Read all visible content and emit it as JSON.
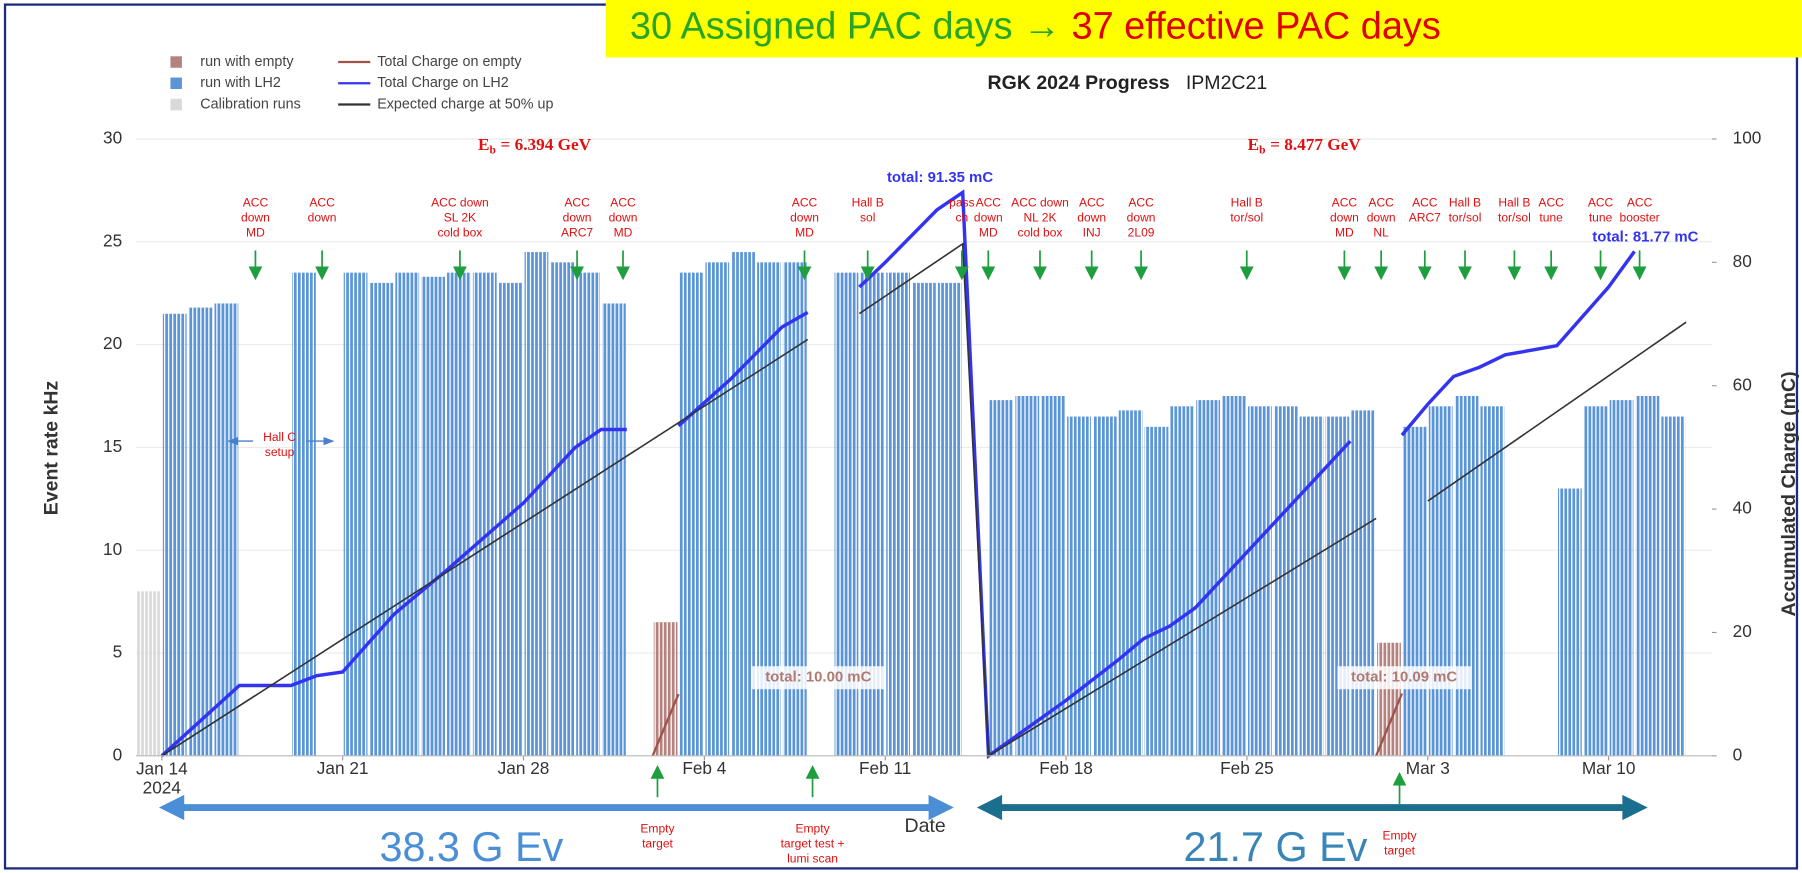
{
  "banner": [
    "30 Assigned PAC days",
    "→",
    "37 effective PAC days"
  ],
  "chart_data": {
    "type": "bar",
    "title": "RGK 2024 Progress",
    "subtitle": "IPM2C21",
    "xlabel": "Date",
    "ylabel": "Event rate kHz",
    "y2label": "Accumulated Charge (mC)",
    "xlim": [
      "2024-01-13",
      "2024-03-14"
    ],
    "xticks": [
      {
        "value": "2024-01-14",
        "label": "Jan 14\n2024"
      },
      {
        "value": "2024-01-21",
        "label": "Jan 21"
      },
      {
        "value": "2024-01-28",
        "label": "Jan 28"
      },
      {
        "value": "2024-02-04",
        "label": "Feb 4"
      },
      {
        "value": "2024-02-11",
        "label": "Feb 11"
      },
      {
        "value": "2024-02-18",
        "label": "Feb 18"
      },
      {
        "value": "2024-02-25",
        "label": "Feb 25"
      },
      {
        "value": "2024-03-03",
        "label": "Mar 3"
      },
      {
        "value": "2024-03-10",
        "label": "Mar 10"
      }
    ],
    "ylim": [
      0,
      30
    ],
    "yticks": [
      0,
      5,
      10,
      15,
      20,
      25,
      30
    ],
    "y2lim": [
      0,
      100
    ],
    "y2ticks": [
      0,
      20,
      40,
      60,
      80,
      100
    ],
    "grid": true,
    "legend": "top-left",
    "series": [
      {
        "name": "run with empty",
        "type": "bar",
        "color": "#b5837f",
        "x": [
          "2024-02-02",
          "2024-03-01"
        ],
        "values": [
          6.5,
          5.5
        ]
      },
      {
        "name": "run with LH2",
        "type": "bar",
        "color": "#5b95d8",
        "x": [
          "2024-01-14",
          "2024-01-15",
          "2024-01-16",
          "2024-01-19",
          "2024-01-21",
          "2024-01-22",
          "2024-01-23",
          "2024-01-24",
          "2024-01-25",
          "2024-01-26",
          "2024-01-27",
          "2024-01-28",
          "2024-01-29",
          "2024-01-30",
          "2024-01-31",
          "2024-02-03",
          "2024-02-04",
          "2024-02-05",
          "2024-02-06",
          "2024-02-07",
          "2024-02-09",
          "2024-02-10",
          "2024-02-11",
          "2024-02-12",
          "2024-02-13",
          "2024-02-15",
          "2024-02-16",
          "2024-02-17",
          "2024-02-18",
          "2024-02-19",
          "2024-02-20",
          "2024-02-21",
          "2024-02-22",
          "2024-02-23",
          "2024-02-24",
          "2024-02-25",
          "2024-02-26",
          "2024-02-27",
          "2024-02-28",
          "2024-02-29",
          "2024-03-02",
          "2024-03-03",
          "2024-03-04",
          "2024-03-05",
          "2024-03-08",
          "2024-03-09",
          "2024-03-10",
          "2024-03-11",
          "2024-03-12"
        ],
        "values": [
          21.5,
          21.8,
          22,
          23.5,
          23.5,
          23,
          23.5,
          23.3,
          23.5,
          23.5,
          23,
          24.5,
          24,
          23.5,
          22,
          23.5,
          24,
          24.5,
          24,
          24,
          23.5,
          23.5,
          23.5,
          23,
          23,
          17.3,
          17.5,
          17.5,
          16.5,
          16.5,
          16.8,
          16,
          17,
          17.3,
          17.5,
          17,
          17,
          16.5,
          16.5,
          16.8,
          16,
          17,
          17.5,
          17,
          13,
          17,
          17.3,
          17.5,
          16.5
        ]
      },
      {
        "name": "Calibration runs",
        "type": "bar",
        "color": "#d9d9d9",
        "x": [
          "2024-01-13"
        ],
        "values": [
          8
        ]
      },
      {
        "name": "Total Charge on empty",
        "type": "line",
        "axis": "y2",
        "color": "#a0524b",
        "x": [
          "2024-02-02",
          "2024-02-03",
          "2024-02-15",
          "2024-03-01",
          "2024-03-02"
        ],
        "values": [
          0,
          10.0,
          null,
          0,
          10.09
        ]
      },
      {
        "name": "Total Charge on LH2",
        "type": "line",
        "axis": "y2",
        "color": "#3434f0",
        "x": [
          "2024-01-14",
          "2024-01-17",
          "2024-01-19",
          "2024-01-20",
          "2024-01-21",
          "2024-01-23",
          "2024-01-25",
          "2024-01-28",
          "2024-01-30",
          "2024-01-31",
          "2024-02-01",
          "2024-02-02",
          "2024-02-03",
          "2024-02-05",
          "2024-02-07",
          "2024-02-08",
          "2024-02-09",
          "2024-02-10",
          "2024-02-11",
          "2024-02-13",
          "2024-02-14",
          "2024-02-15",
          "2024-02-16",
          "2024-02-18",
          "2024-02-20",
          "2024-02-21",
          "2024-02-22",
          "2024-02-23",
          "2024-02-25",
          "2024-02-27",
          "2024-02-29",
          "2024-03-01",
          "2024-03-02",
          "2024-03-03",
          "2024-03-04",
          "2024-03-05",
          "2024-03-06",
          "2024-03-08",
          "2024-03-10",
          "2024-03-11"
        ],
        "values": [
          0,
          11.4,
          11.4,
          13,
          13.6,
          23,
          30,
          41,
          50,
          52.9,
          52.9,
          null,
          53.5,
          61,
          69.5,
          71.9,
          null,
          76,
          80,
          88.5,
          91.35,
          0,
          3,
          9,
          15.5,
          19,
          21,
          24,
          33,
          42,
          51,
          null,
          52,
          57,
          61.5,
          63,
          65,
          66.5,
          76,
          81.77
        ]
      },
      {
        "name": "Expected charge at 50% up",
        "type": "line",
        "axis": "y2",
        "color": "#333333",
        "x": [
          "2024-01-14",
          "2024-02-08",
          "2024-02-09",
          "2024-02-10",
          "2024-02-14",
          "2024-02-15",
          "2024-03-01",
          "2024-03-02",
          "2024-03-03",
          "2024-03-13"
        ],
        "values": [
          0,
          67.5,
          null,
          71.7,
          83,
          0,
          38.5,
          null,
          41.3,
          70.3
        ]
      }
    ],
    "beam_energies": [
      {
        "symbol": "E",
        "subscript": "b",
        "text": "= 6.394 GeV"
      },
      {
        "symbol": "E",
        "subscript": "b",
        "text": "= 8.477 GeV"
      }
    ],
    "annotations": [
      [
        "ACC",
        "down",
        "MD"
      ],
      [
        "ACC",
        "down"
      ],
      [
        "ACC down",
        "SL 2K",
        "cold box"
      ],
      [
        "ACC",
        "down",
        "ARC7"
      ],
      [
        "ACC",
        "down",
        "MD"
      ],
      [
        "ACC",
        "down",
        "MD"
      ],
      [
        "Hall B",
        "sol"
      ],
      [
        "pass",
        "ch"
      ],
      [
        "ACC",
        "down",
        "MD"
      ],
      [
        "ACC down",
        "NL 2K",
        "cold box"
      ],
      [
        "ACC",
        "down",
        "INJ"
      ],
      [
        "ACC",
        "down",
        "2L09"
      ],
      [
        "Hall B",
        "tor/sol"
      ],
      [
        "ACC",
        "down",
        "MD"
      ],
      [
        "ACC",
        "down",
        "NL"
      ],
      [
        "ACC",
        "ARC7"
      ],
      [
        "Hall B",
        "tor/sol"
      ],
      [
        "Hall B",
        "tor/sol"
      ],
      [
        "ACC",
        "tune"
      ],
      [
        "ACC",
        "tune"
      ],
      [
        "ACC",
        "booster"
      ]
    ],
    "bottom_notes": [
      [
        "Empty",
        "target"
      ],
      [
        "Empty",
        "target test +",
        "lumi scan"
      ],
      [
        "Empty",
        "target"
      ]
    ],
    "setup_note": [
      "Hall C",
      "setup"
    ],
    "totals": [
      "total: 91.35 mC",
      "total: 81.77 mC",
      "total: 10.00 mC",
      "total: 10.09 mC"
    ],
    "event_totals": [
      "38.3 G Ev",
      "21.7 G Ev"
    ]
  }
}
